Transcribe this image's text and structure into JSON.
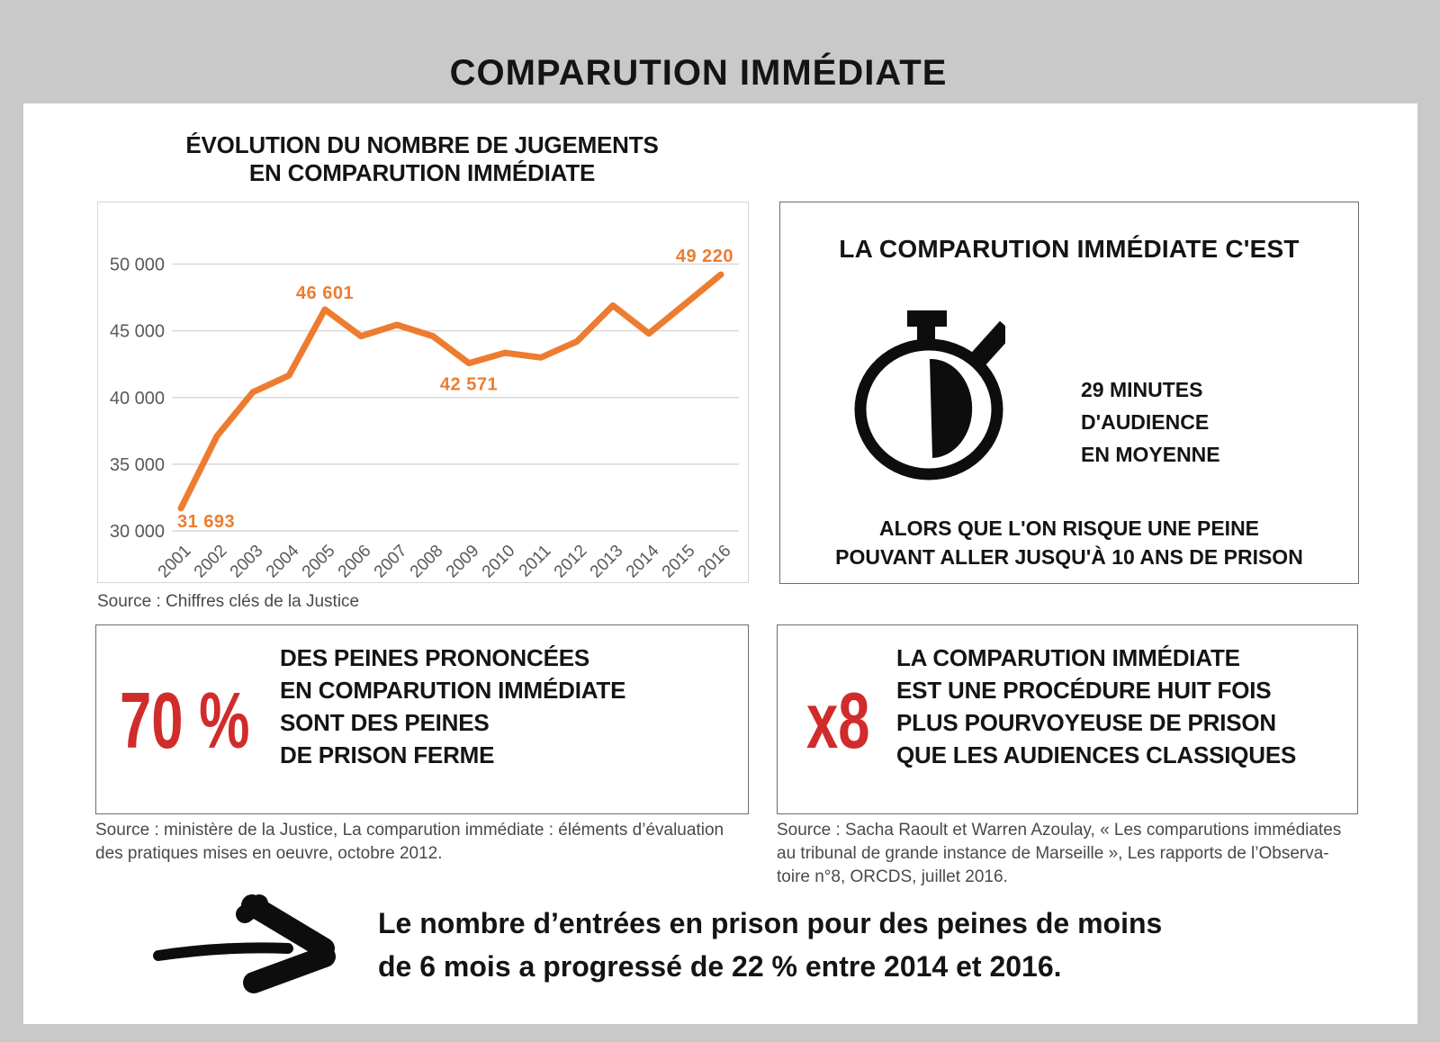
{
  "page": {
    "title": "COMPARUTION IMMÉDIATE"
  },
  "colors": {
    "background": "#c9c9c9",
    "panel": "#ffffff",
    "orange": "#ED7C30",
    "red": "#D12B2B",
    "grid": "#d9d9d9",
    "axis_text": "#595959",
    "source_text": "#4a4a4a"
  },
  "chart": {
    "title_line1": "ÉVOLUTION DU NOMBRE DE JUGEMENTS",
    "title_line2": "EN COMPARUTION IMMÉDIATE",
    "source": "Source : Chiffres clés de la Justice"
  },
  "chart_data": {
    "type": "line",
    "title": "Évolution du nombre de jugements en comparution immédiate",
    "x": [
      2001,
      2002,
      2003,
      2004,
      2005,
      2006,
      2007,
      2008,
      2009,
      2010,
      2011,
      2012,
      2013,
      2014,
      2015,
      2016
    ],
    "values": [
      31693,
      37100,
      40400,
      41650,
      46601,
      44600,
      45450,
      44600,
      42571,
      43350,
      43000,
      44200,
      46900,
      44800,
      47000,
      49220
    ],
    "ylim": [
      30000,
      50000
    ],
    "yticks": [
      30000,
      35000,
      40000,
      45000,
      50000
    ],
    "ytick_labels": [
      "30 000",
      "35 000",
      "40 000",
      "45 000",
      "50 000"
    ],
    "grid": true,
    "legend": false,
    "line_color": "#ED7C30",
    "data_labels": [
      {
        "index": 0,
        "text": "31 693",
        "placement": "below-left"
      },
      {
        "index": 4,
        "text": "46 601",
        "placement": "above"
      },
      {
        "index": 8,
        "text": "42 571",
        "placement": "below"
      },
      {
        "index": 15,
        "text": "49 220",
        "placement": "above-right"
      }
    ]
  },
  "stat_box": {
    "title": "LA COMPARUTION IMMÉDIATE C'EST",
    "icon": "stopwatch-icon",
    "stat_line1": "29 MINUTES",
    "stat_line2": "D'AUDIENCE",
    "stat_line3": "EN MOYENNE",
    "note_line1": "ALORS QUE L'ON RISQUE UNE PEINE",
    "note_line2": "POUVANT ALLER JUSQU'À 10 ANS DE PRISON"
  },
  "percent_box": {
    "value": "70 %",
    "line1": "DES PEINES PRONONCÉES",
    "line2": "EN COMPARUTION IMMÉDIATE",
    "line3": "SONT DES PEINES",
    "line4": "DE PRISON FERME",
    "source_line1": "Source : ministère de la Justice, La comparution immédiate : éléments d’évaluation",
    "source_line2": "des pratiques mises en oeuvre, octobre 2012."
  },
  "x8_box": {
    "value": "x8",
    "line1": "LA COMPARUTION IMMÉDIATE",
    "line2": "EST UNE PROCÉDURE HUIT FOIS",
    "line3": "PLUS POURVOYEUSE DE PRISON",
    "line4": "QUE LES AUDIENCES CLASSIQUES",
    "source_line1": "Source : Sacha Raoult et Warren Azoulay, « Les comparutions immédiates",
    "source_line2": "au tribunal de grande instance de Marseille », Les rapports de l’Observa-",
    "source_line3": "toire n°8, ORCDS, juillet 2016."
  },
  "footer": {
    "icon": "hand-drawn-arrow-right-icon",
    "line1": "Le nombre d’entrées en prison pour des peines de moins",
    "line2": "de 6 mois a progressé de 22 % entre 2014 et 2016."
  }
}
